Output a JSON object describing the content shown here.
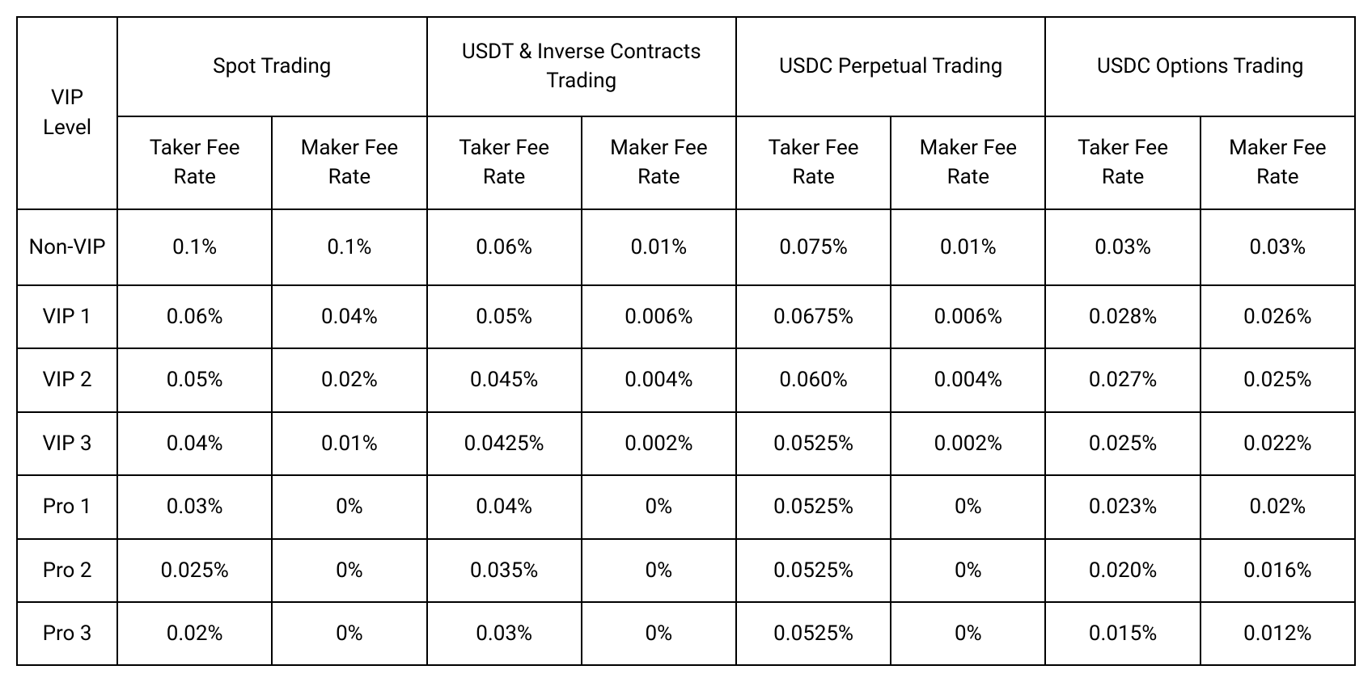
{
  "fee_table": {
    "type": "table",
    "border_color": "#000000",
    "background_color": "#ffffff",
    "text_color": "#000000",
    "font_family": "-apple-system, BlinkMacSystemFont, Segoe UI, Roboto, Helvetica, Arial, sans-serif",
    "header_fontsize": 26,
    "cell_fontsize": 26,
    "font_weight": 400,
    "border_width": 2,
    "vip_level_header": "VIP Level",
    "groups": [
      {
        "label": "Spot Trading",
        "taker_label": "Taker Fee Rate",
        "maker_label": "Maker Fee Rate"
      },
      {
        "label": "USDT & Inverse Contracts Trading",
        "taker_label": "Taker Fee Rate",
        "maker_label": "Maker Fee Rate"
      },
      {
        "label": "USDC Perpetual Trading",
        "taker_label": "Taker Fee Rate",
        "maker_label": "Maker Fee Rate"
      },
      {
        "label": "USDC Options Trading",
        "taker_label": "Taker Fee Rate",
        "maker_label": "Maker Fee Rate"
      }
    ],
    "rows": [
      {
        "level": "Non-VIP",
        "cells": [
          "0.1%",
          "0.1%",
          "0.06%",
          "0.01%",
          "0.075%",
          "0.01%",
          "0.03%",
          "0.03%"
        ]
      },
      {
        "level": "VIP 1",
        "cells": [
          "0.06%",
          "0.04%",
          "0.05%",
          "0.006%",
          "0.0675%",
          "0.006%",
          "0.028%",
          "0.026%"
        ]
      },
      {
        "level": "VIP 2",
        "cells": [
          "0.05%",
          "0.02%",
          "0.045%",
          "0.004%",
          "0.060%",
          "0.004%",
          "0.027%",
          "0.025%"
        ]
      },
      {
        "level": "VIP 3",
        "cells": [
          "0.04%",
          "0.01%",
          "0.0425%",
          "0.002%",
          "0.0525%",
          "0.002%",
          "0.025%",
          "0.022%"
        ]
      },
      {
        "level": "Pro 1",
        "cells": [
          "0.03%",
          "0%",
          "0.04%",
          "0%",
          "0.0525%",
          "0%",
          "0.023%",
          "0.02%"
        ]
      },
      {
        "level": "Pro 2",
        "cells": [
          "0.025%",
          "0%",
          "0.035%",
          "0%",
          "0.0525%",
          "0%",
          "0.020%",
          "0.016%"
        ]
      },
      {
        "level": "Pro 3",
        "cells": [
          "0.02%",
          "0%",
          "0.03%",
          "0%",
          "0.0525%",
          "0%",
          "0.015%",
          "0.012%"
        ]
      }
    ]
  }
}
